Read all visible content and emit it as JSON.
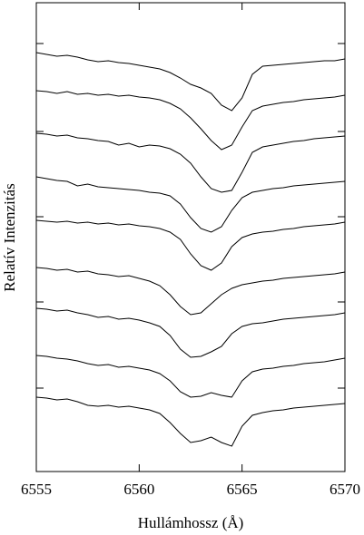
{
  "chart_data": {
    "type": "line",
    "xlabel": "Hullámhossz (Å)",
    "ylabel": "Relatív Intenzitás",
    "x": [
      6555,
      6555.5,
      6556,
      6556.5,
      6557,
      6557.5,
      6558,
      6558.5,
      6559,
      6559.5,
      6560,
      6560.5,
      6561,
      6561.5,
      6562,
      6562.5,
      6563,
      6563.5,
      6564,
      6564.5,
      6565,
      6565.5,
      6566,
      6566.5,
      6567,
      6567.5,
      6568,
      6568.5,
      6569,
      6569.5,
      6570
    ],
    "series": [
      {
        "color": "#000000",
        "values": [
          462,
          460,
          458,
          459,
          457,
          454,
          452,
          453,
          451,
          450,
          448,
          446,
          444,
          440,
          434,
          427,
          423,
          417,
          404,
          398,
          412,
          438,
          447,
          448,
          449,
          450,
          451,
          452,
          453,
          453,
          455
        ]
      },
      {
        "color": "#000000",
        "values": [
          420,
          419,
          417,
          419,
          416,
          417,
          415,
          416,
          414,
          415,
          413,
          412,
          410,
          406,
          400,
          390,
          378,
          365,
          355,
          360,
          380,
          398,
          403,
          405,
          407,
          408,
          410,
          411,
          412,
          413,
          415
        ]
      },
      {
        "color": "#000000",
        "values": [
          373,
          372,
          370,
          371,
          368,
          367,
          365,
          364,
          360,
          362,
          358,
          360,
          359,
          356,
          350,
          340,
          325,
          312,
          308,
          310,
          330,
          352,
          358,
          360,
          362,
          364,
          365,
          367,
          368,
          369,
          370
        ]
      },
      {
        "color": "#000000",
        "values": [
          325,
          323,
          321,
          320,
          315,
          317,
          314,
          313,
          312,
          311,
          310,
          308,
          307,
          304,
          295,
          280,
          268,
          264,
          270,
          288,
          302,
          308,
          310,
          312,
          313,
          315,
          316,
          317,
          318,
          319,
          320
        ]
      },
      {
        "color": "#000000",
        "values": [
          277,
          276,
          275,
          276,
          274,
          275,
          273,
          274,
          272,
          273,
          271,
          270,
          268,
          264,
          256,
          240,
          227,
          222,
          230,
          248,
          258,
          262,
          264,
          265,
          267,
          268,
          270,
          271,
          272,
          273,
          275
        ]
      },
      {
        "color": "#000000",
        "values": [
          225,
          224,
          222,
          223,
          220,
          221,
          218,
          217,
          215,
          216,
          213,
          210,
          205,
          195,
          182,
          173,
          175,
          185,
          195,
          202,
          206,
          208,
          210,
          211,
          213,
          214,
          215,
          216,
          217,
          218,
          220
        ]
      },
      {
        "color": "#000000",
        "values": [
          180,
          179,
          177,
          178,
          175,
          173,
          170,
          171,
          168,
          169,
          167,
          164,
          160,
          150,
          135,
          126,
          127,
          132,
          138,
          152,
          160,
          163,
          164,
          166,
          168,
          169,
          170,
          171,
          172,
          173,
          175
        ]
      },
      {
        "color": "#000000",
        "values": [
          128,
          127,
          125,
          124,
          122,
          119,
          117,
          118,
          115,
          116,
          114,
          112,
          108,
          100,
          88,
          82,
          83,
          87,
          84,
          82,
          100,
          110,
          113,
          114,
          116,
          117,
          119,
          120,
          121,
          123,
          125
        ]
      },
      {
        "color": "#000000",
        "values": [
          82,
          81,
          79,
          80,
          77,
          73,
          72,
          73,
          71,
          72,
          70,
          68,
          64,
          54,
          42,
          32,
          34,
          38,
          32,
          28,
          50,
          62,
          65,
          67,
          68,
          70,
          71,
          72,
          73,
          74,
          75
        ]
      }
    ],
    "xlim": [
      6555,
      6570
    ],
    "xticks": [
      6555,
      6560,
      6565,
      6570
    ],
    "ylim": [
      0,
      517
    ],
    "yticks": [
      92,
      187,
      281,
      375,
      472
    ]
  }
}
